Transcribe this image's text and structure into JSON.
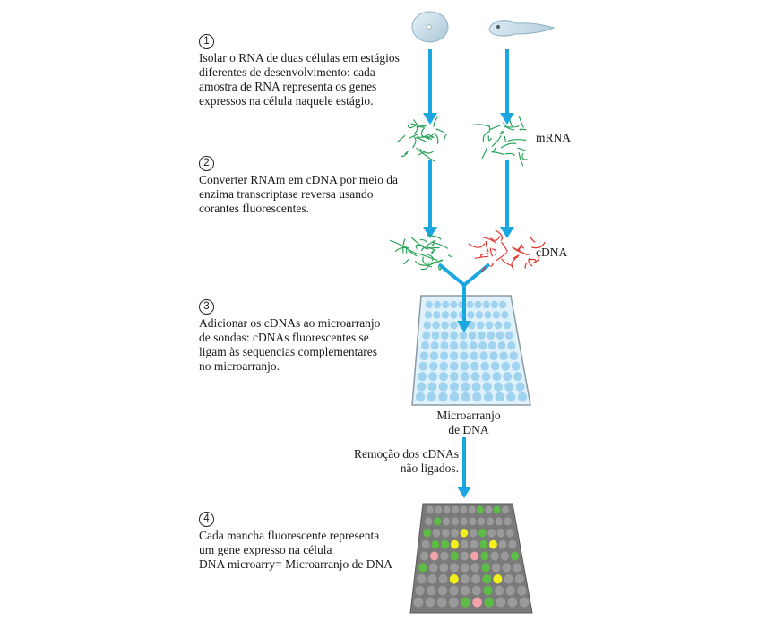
{
  "steps": [
    {
      "number": "1",
      "lines": [
        "Isolar o RNA de duas células em estágios",
        "diferentes de desenvolvimento: cada",
        "amostra de RNA representa os genes",
        "expressos na célula naquele estágio."
      ]
    },
    {
      "number": "2",
      "lines": [
        "Converter RNAm em cDNA por meio da",
        "enzima transcriptase reversa usando",
        "corantes fluorescentes."
      ]
    },
    {
      "number": "3",
      "lines": [
        "Adicionar os cDNAs ao microarranjo",
        "de sondas: cDNAs fluorescentes se",
        "ligam às sequencias complementares",
        "no microarranjo."
      ]
    },
    {
      "number": "4",
      "lines": [
        "Cada mancha fluorescente representa",
        "um gene expresso na célula",
        "DNA microarry= Microarranjo de DNA"
      ]
    }
  ],
  "labels": {
    "mrna": "mRNA",
    "cdna": "cDNA",
    "microarray_line1": "Microarranjo",
    "microarray_line2": "de DNA",
    "removal_line1": "Remoção dos cDNAs",
    "removal_line2": "não ligados."
  },
  "colors": {
    "arrow": "#1aa7e0",
    "green_strand": "#2aa35a",
    "red_strand": "#e0342f",
    "array_dot": "#9fd3ef",
    "array_bg": "#dff1fa",
    "result_bg": "#7a7a7a",
    "result_dot": "#9a9a9a",
    "spot_green": "#5dbb46",
    "spot_yellow": "#f3ef1b",
    "spot_pink": "#f3a3a8"
  }
}
